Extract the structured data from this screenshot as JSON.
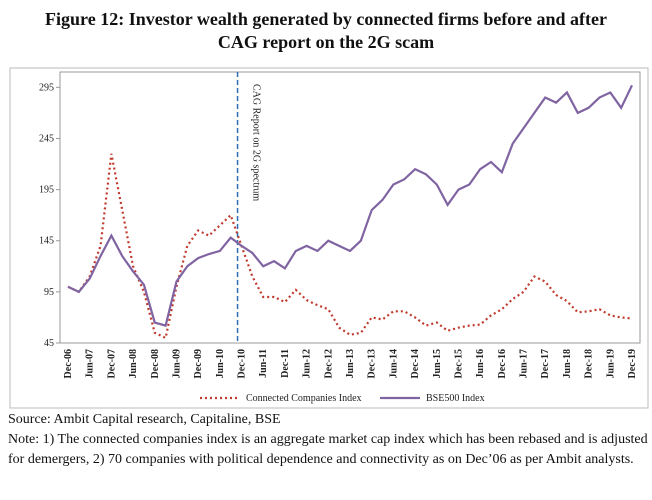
{
  "chart_data": {
    "type": "line",
    "title": "Figure 12: Investor wealth generated by connected firms before and after CAG report on the 2G scam",
    "categories": [
      "Dec-06",
      null,
      "Jun-07",
      null,
      "Dec-07",
      null,
      "Jun-08",
      null,
      "Dec-08",
      null,
      "Jun-09",
      null,
      "Dec-09",
      null,
      "Jun-10",
      null,
      "Dec-10",
      null,
      "Jun-11",
      null,
      "Dec-11",
      null,
      "Jun-12",
      null,
      "Dec-12",
      null,
      "Jun-13",
      null,
      "Dec-13",
      null,
      "Jun-14",
      null,
      "Dec-14",
      null,
      "Jun-15",
      null,
      "Dec-15",
      null,
      "Jun-16",
      null,
      "Dec-16",
      null,
      "Jun-17",
      null,
      "Dec-17",
      null,
      "Jun-18",
      null,
      "Dec-18",
      null,
      "Jun-19",
      null,
      "Dec-19"
    ],
    "series": [
      {
        "name": "Connected Companies Index",
        "color": "#c0392b",
        "style": "dotted",
        "values": [
          100,
          95,
          110,
          140,
          230,
          175,
          120,
          95,
          55,
          50,
          100,
          140,
          155,
          150,
          160,
          170,
          140,
          110,
          90,
          90,
          85,
          97,
          87,
          82,
          78,
          60,
          53,
          55,
          70,
          68,
          76,
          76,
          70,
          62,
          65,
          57,
          60,
          62,
          63,
          72,
          78,
          88,
          95,
          110,
          105,
          92,
          86,
          75,
          76,
          78,
          72,
          70,
          69
        ]
      },
      {
        "name": "BSE500 Index",
        "color": "#8064a2",
        "style": "solid",
        "values": [
          100,
          95,
          108,
          130,
          150,
          130,
          115,
          102,
          65,
          62,
          105,
          120,
          128,
          132,
          135,
          148,
          140,
          133,
          120,
          125,
          118,
          135,
          140,
          135,
          145,
          140,
          135,
          145,
          175,
          185,
          200,
          205,
          215,
          210,
          200,
          180,
          195,
          200,
          215,
          222,
          212,
          240,
          255,
          270,
          285,
          280,
          290,
          270,
          275,
          285,
          290,
          275,
          297
        ]
      }
    ],
    "ylim": [
      45,
      310
    ],
    "yticks": [
      45,
      95,
      145,
      195,
      245,
      295
    ],
    "annotation": {
      "text": "CAG Report on 2G spectrum",
      "category": "Dec-10"
    },
    "legend": "bottom",
    "source": "Source: Ambit Capital research, Capitaline, BSE",
    "note": "Note: 1) The connected companies index is an aggregate market cap index which has been rebased and is adjusted for demergers, 2) 70 companies with political dependence and connectivity as on Dec’06 as per Ambit analysts."
  }
}
